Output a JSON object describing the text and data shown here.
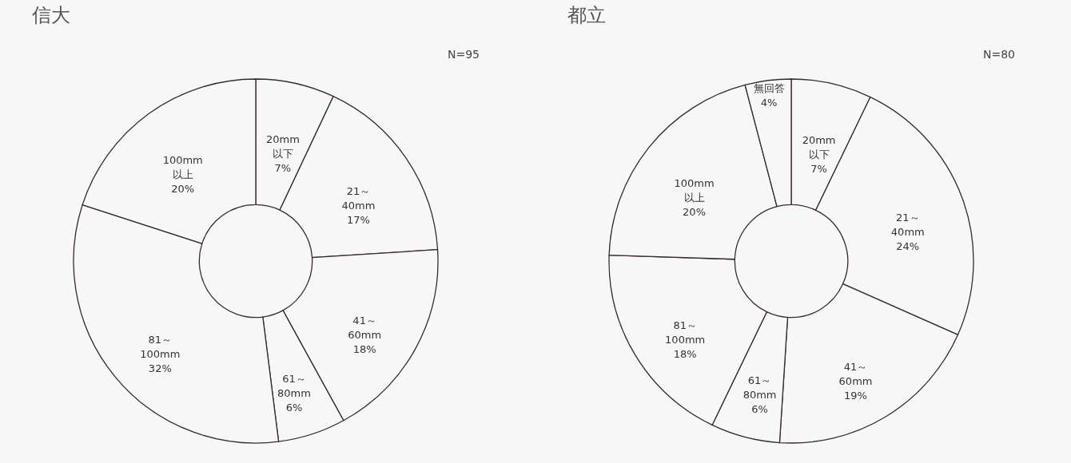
{
  "chart_data": [
    {
      "type": "donut",
      "title": "信大",
      "annotations": [
        "N=95"
      ],
      "categories": [
        "20mm以下",
        "21～40mm",
        "41～60mm",
        "61～80mm",
        "81～100mm",
        "100mm以上"
      ],
      "values": [
        7,
        17,
        18,
        6,
        32,
        20
      ],
      "value_labels": [
        "7%",
        "17%",
        "18%",
        "6%",
        "32%",
        "20%"
      ],
      "colors": [
        "#f7f7f7",
        "#f7f7f7",
        "#f7f7f7",
        "#f7f7f7",
        "#f7f7f7",
        "#f7f7f7"
      ],
      "legend": false
    },
    {
      "type": "donut",
      "title": "都立",
      "annotations": [
        "N=80"
      ],
      "categories": [
        "20mm以下",
        "21～40mm",
        "41～60mm",
        "61～80mm",
        "81～100mm",
        "100mm以上",
        "無回答"
      ],
      "values": [
        7,
        24,
        19,
        6,
        18,
        20,
        4
      ],
      "value_labels": [
        "7%",
        "24%",
        "19%",
        "6%",
        "18%",
        "20%",
        "4%"
      ],
      "colors": [
        "#f7f7f7",
        "#f7f7f7",
        "#f7f7f7",
        "#f7f7f7",
        "#f7f7f7",
        "#f7f7f7",
        "#f7f7f7"
      ],
      "legend": false
    }
  ]
}
